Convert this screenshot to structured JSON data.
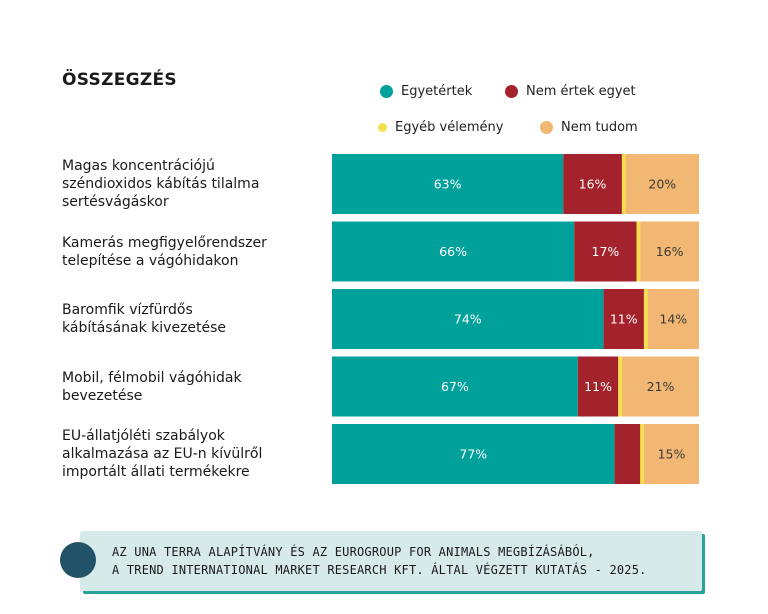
{
  "chart_data": {
    "type": "bar",
    "orientation": "horizontal",
    "stacked": true,
    "title": "ÖSSZEGZÉS",
    "legend": [
      {
        "name": "Egyetértek",
        "color": "#00a19a"
      },
      {
        "name": "Nem értek egyet",
        "color": "#a3222b"
      },
      {
        "name": "Egyéb vélemény",
        "color": "#f7e14b"
      },
      {
        "name": "Nem tudom",
        "color": "#f2b772"
      }
    ],
    "categories": [
      [
        "Magas koncentrációjú",
        "széndioxidos kábítás tilalma",
        "sertésvágáskor"
      ],
      [
        "Kamerás megfigyelőrendszer",
        "telepítése a vágóhidakon"
      ],
      [
        "Baromfik vízfürdős",
        "kábításának kivezetése"
      ],
      [
        "Mobil, félmobil vágóhidak",
        "bevezetése"
      ],
      [
        "EU-állatjóléti szabályok",
        "alkalmazása az EU-n kívülről",
        "importált állati termékekre"
      ]
    ],
    "series": [
      {
        "name": "Egyetértek",
        "values": [
          63,
          66,
          74,
          67,
          77
        ],
        "labels": [
          "63%",
          "66%",
          "74%",
          "67%",
          "77%"
        ]
      },
      {
        "name": "Nem értek egyet",
        "values": [
          16,
          17,
          11,
          11,
          7
        ],
        "labels": [
          "16%",
          "17%",
          "11%",
          "11%",
          ""
        ]
      },
      {
        "name": "Egyéb vélemény",
        "values": [
          1,
          1,
          1,
          1,
          1
        ],
        "labels": [
          "",
          "",
          "",
          "",
          ""
        ]
      },
      {
        "name": "Nem tudom",
        "values": [
          20,
          16,
          14,
          21,
          15
        ],
        "labels": [
          "20%",
          "16%",
          "14%",
          "21%",
          "15%"
        ]
      }
    ],
    "xlim": [
      0,
      100
    ]
  },
  "footer": {
    "line1": "AZ UNA TERRA ALAPÍTVÁNY ÉS AZ EUROGROUP FOR ANIMALS MEGBÍZÁSÁBÓL,",
    "line2": "A TREND INTERNATIONAL MARKET RESEARCH KFT.  ÁLTAL VÉGZETT KUTATÁS - 2025."
  }
}
